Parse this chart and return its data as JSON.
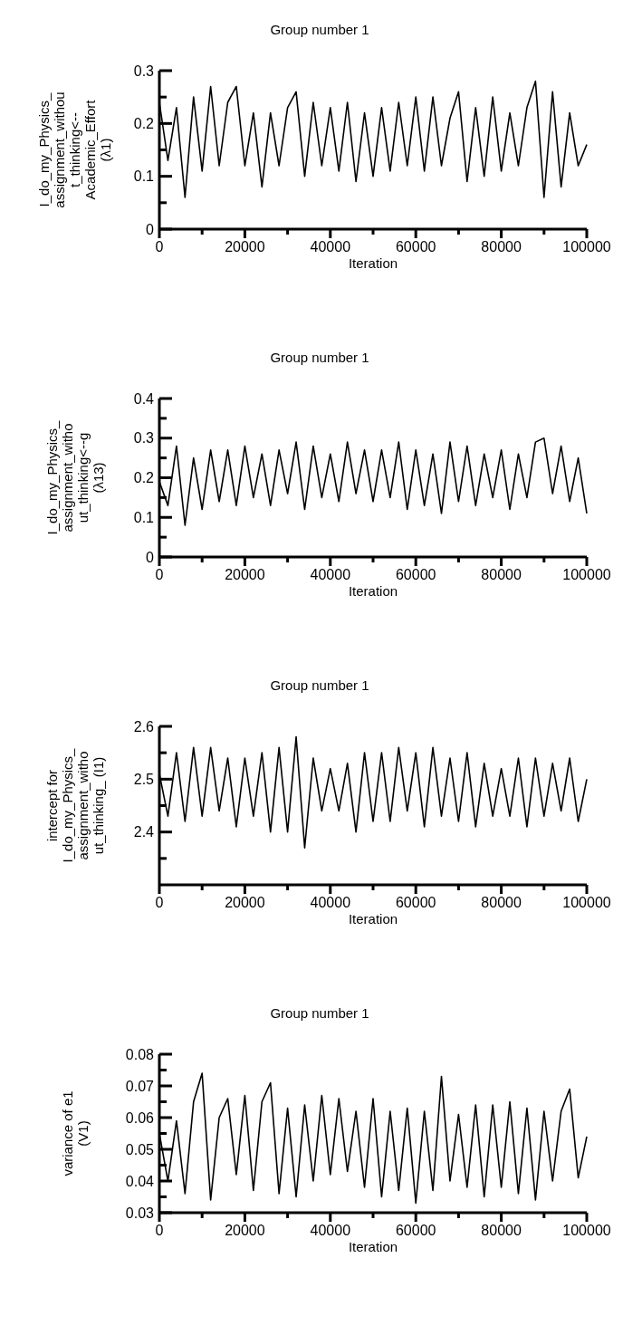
{
  "chart_data": [
    {
      "type": "line",
      "title": "Group number 1",
      "xlabel": "Iteration",
      "ylabel": "I_do_my_Physics_\nassignment_withou\nt_thinking<--\nAcademic_Effort\n(λ1)",
      "color": "#000000",
      "x": [
        0,
        2000,
        4000,
        6000,
        8000,
        10000,
        12000,
        14000,
        16000,
        18000,
        20000,
        22000,
        24000,
        26000,
        28000,
        30000,
        32000,
        34000,
        36000,
        38000,
        40000,
        42000,
        44000,
        46000,
        48000,
        50000,
        52000,
        54000,
        56000,
        58000,
        60000,
        62000,
        64000,
        66000,
        68000,
        70000,
        72000,
        74000,
        76000,
        78000,
        80000,
        82000,
        84000,
        86000,
        88000,
        90000,
        92000,
        94000,
        96000,
        98000,
        100000
      ],
      "values": [
        0.24,
        0.13,
        0.23,
        0.06,
        0.25,
        0.11,
        0.27,
        0.12,
        0.24,
        0.27,
        0.12,
        0.22,
        0.08,
        0.22,
        0.12,
        0.23,
        0.26,
        0.1,
        0.24,
        0.12,
        0.23,
        0.11,
        0.24,
        0.09,
        0.22,
        0.1,
        0.23,
        0.11,
        0.24,
        0.12,
        0.25,
        0.11,
        0.25,
        0.12,
        0.21,
        0.26,
        0.09,
        0.23,
        0.1,
        0.25,
        0.11,
        0.22,
        0.12,
        0.23,
        0.28,
        0.06,
        0.26,
        0.08,
        0.22,
        0.12,
        0.16
      ],
      "xlim": [
        0,
        100000
      ],
      "xticks": [
        0,
        {
          "value": 10000,
          "label": null
        },
        20000,
        {
          "value": 30000,
          "label": null
        },
        40000,
        {
          "value": 50000,
          "label": null
        },
        60000,
        {
          "value": 70000,
          "label": null
        },
        80000,
        {
          "value": 90000,
          "label": null
        },
        100000
      ],
      "ylim": [
        0,
        0.3
      ],
      "yticks": [
        0,
        {
          "value": 0.05,
          "label": null
        },
        0.1,
        {
          "value": 0.15,
          "label": null
        },
        0.2,
        {
          "value": 0.25,
          "label": null
        },
        0.3
      ]
    },
    {
      "type": "line",
      "title": "Group number 1",
      "xlabel": "Iteration",
      "ylabel": "I_do_my_Physics_\nassignment_witho\nut_thinking<--g\n(λ13)",
      "color": "#000000",
      "x": [
        0,
        2000,
        4000,
        6000,
        8000,
        10000,
        12000,
        14000,
        16000,
        18000,
        20000,
        22000,
        24000,
        26000,
        28000,
        30000,
        32000,
        34000,
        36000,
        38000,
        40000,
        42000,
        44000,
        46000,
        48000,
        50000,
        52000,
        54000,
        56000,
        58000,
        60000,
        62000,
        64000,
        66000,
        68000,
        70000,
        72000,
        74000,
        76000,
        78000,
        80000,
        82000,
        84000,
        86000,
        88000,
        90000,
        92000,
        94000,
        96000,
        98000,
        100000
      ],
      "values": [
        0.19,
        0.13,
        0.28,
        0.08,
        0.25,
        0.12,
        0.27,
        0.14,
        0.27,
        0.13,
        0.28,
        0.15,
        0.26,
        0.13,
        0.27,
        0.16,
        0.29,
        0.12,
        0.28,
        0.15,
        0.26,
        0.14,
        0.29,
        0.16,
        0.27,
        0.14,
        0.27,
        0.15,
        0.29,
        0.12,
        0.27,
        0.13,
        0.26,
        0.11,
        0.29,
        0.14,
        0.28,
        0.13,
        0.26,
        0.15,
        0.27,
        0.12,
        0.26,
        0.15,
        0.29,
        0.3,
        0.16,
        0.28,
        0.14,
        0.25,
        0.11
      ],
      "xlim": [
        0,
        100000
      ],
      "xticks": [
        0,
        {
          "value": 10000,
          "label": null
        },
        20000,
        {
          "value": 30000,
          "label": null
        },
        40000,
        {
          "value": 50000,
          "label": null
        },
        60000,
        {
          "value": 70000,
          "label": null
        },
        80000,
        {
          "value": 90000,
          "label": null
        },
        100000
      ],
      "ylim": [
        0,
        0.4
      ],
      "yticks": [
        0,
        {
          "value": 0.05,
          "label": null
        },
        0.1,
        {
          "value": 0.15,
          "label": null
        },
        0.2,
        {
          "value": 0.25,
          "label": null
        },
        0.3,
        {
          "value": 0.35,
          "label": null
        },
        0.4
      ]
    },
    {
      "type": "line",
      "title": "Group number 1",
      "xlabel": "Iteration",
      "ylabel": "intercept for\nI_do_my_Physics_\nassignment_witho\nut_thinking_ (I1)",
      "color": "#000000",
      "x": [
        0,
        2000,
        4000,
        6000,
        8000,
        10000,
        12000,
        14000,
        16000,
        18000,
        20000,
        22000,
        24000,
        26000,
        28000,
        30000,
        32000,
        34000,
        36000,
        38000,
        40000,
        42000,
        44000,
        46000,
        48000,
        50000,
        52000,
        54000,
        56000,
        58000,
        60000,
        62000,
        64000,
        66000,
        68000,
        70000,
        72000,
        74000,
        76000,
        78000,
        80000,
        82000,
        84000,
        86000,
        88000,
        90000,
        92000,
        94000,
        96000,
        98000,
        100000
      ],
      "values": [
        2.51,
        2.43,
        2.55,
        2.42,
        2.56,
        2.43,
        2.56,
        2.44,
        2.54,
        2.41,
        2.54,
        2.43,
        2.55,
        2.4,
        2.56,
        2.4,
        2.58,
        2.37,
        2.54,
        2.44,
        2.52,
        2.44,
        2.53,
        2.4,
        2.55,
        2.42,
        2.55,
        2.42,
        2.56,
        2.44,
        2.55,
        2.41,
        2.56,
        2.43,
        2.54,
        2.42,
        2.55,
        2.41,
        2.53,
        2.43,
        2.52,
        2.43,
        2.54,
        2.41,
        2.54,
        2.43,
        2.53,
        2.44,
        2.54,
        2.42,
        2.5
      ],
      "xlim": [
        0,
        100000
      ],
      "xticks": [
        0,
        {
          "value": 10000,
          "label": null
        },
        20000,
        {
          "value": 30000,
          "label": null
        },
        40000,
        {
          "value": 50000,
          "label": null
        },
        60000,
        {
          "value": 70000,
          "label": null
        },
        80000,
        {
          "value": 90000,
          "label": null
        },
        100000
      ],
      "ylim": [
        2.3,
        2.6
      ],
      "yticks": [
        {
          "value": 2.35,
          "label": null
        },
        2.4,
        {
          "value": 2.45,
          "label": null
        },
        2.5,
        {
          "value": 2.55,
          "label": null
        },
        2.6
      ]
    },
    {
      "type": "line",
      "title": "Group number 1",
      "xlabel": "Iteration",
      "ylabel": "variance of e1\n(V1)",
      "color": "#000000",
      "x": [
        0,
        2000,
        4000,
        6000,
        8000,
        10000,
        12000,
        14000,
        16000,
        18000,
        20000,
        22000,
        24000,
        26000,
        28000,
        30000,
        32000,
        34000,
        36000,
        38000,
        40000,
        42000,
        44000,
        46000,
        48000,
        50000,
        52000,
        54000,
        56000,
        58000,
        60000,
        62000,
        64000,
        66000,
        68000,
        70000,
        72000,
        74000,
        76000,
        78000,
        80000,
        82000,
        84000,
        86000,
        88000,
        90000,
        92000,
        94000,
        96000,
        98000,
        100000
      ],
      "values": [
        0.055,
        0.04,
        0.059,
        0.036,
        0.065,
        0.074,
        0.034,
        0.06,
        0.066,
        0.042,
        0.067,
        0.037,
        0.065,
        0.071,
        0.036,
        0.063,
        0.035,
        0.064,
        0.04,
        0.067,
        0.042,
        0.066,
        0.043,
        0.062,
        0.038,
        0.066,
        0.035,
        0.062,
        0.037,
        0.063,
        0.033,
        0.062,
        0.037,
        0.073,
        0.04,
        0.061,
        0.038,
        0.064,
        0.035,
        0.064,
        0.038,
        0.065,
        0.036,
        0.063,
        0.034,
        0.062,
        0.04,
        0.062,
        0.069,
        0.041,
        0.054
      ],
      "xlim": [
        0,
        100000
      ],
      "xticks": [
        0,
        {
          "value": 10000,
          "label": null
        },
        20000,
        {
          "value": 30000,
          "label": null
        },
        40000,
        {
          "value": 50000,
          "label": null
        },
        60000,
        {
          "value": 70000,
          "label": null
        },
        80000,
        {
          "value": 90000,
          "label": null
        },
        100000
      ],
      "ylim": [
        0.03,
        0.08
      ],
      "yticks": [
        0.03,
        {
          "value": 0.035,
          "label": null
        },
        0.04,
        {
          "value": 0.045,
          "label": null
        },
        0.05,
        {
          "value": 0.055,
          "label": null
        },
        0.06,
        {
          "value": 0.065,
          "label": null
        },
        0.07,
        {
          "value": 0.075,
          "label": null
        },
        0.08
      ]
    }
  ]
}
